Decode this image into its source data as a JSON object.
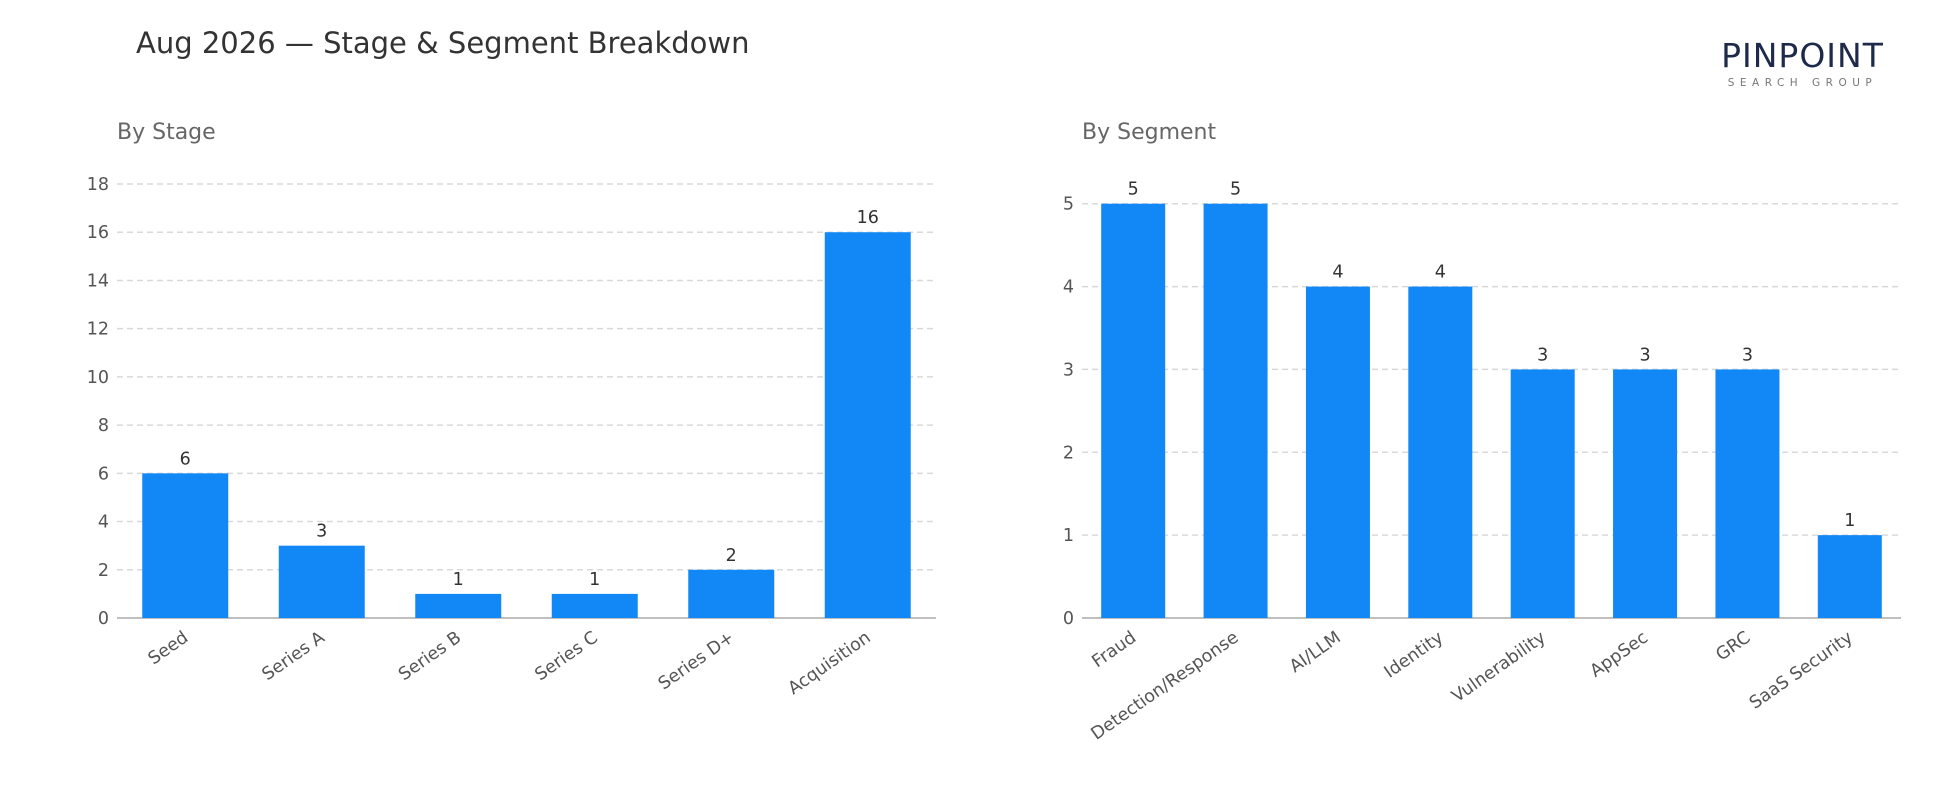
{
  "title": "Aug 2026 — Stage & Segment Breakdown",
  "logo": {
    "word": "PINPOINT",
    "sub": "SEARCH GROUP"
  },
  "colors": {
    "bar": "#1288f6",
    "grid": "#d9d9d9",
    "axis": "#aaaaaa"
  },
  "chart_data": [
    {
      "type": "bar",
      "title": "By Stage",
      "categories": [
        "Seed",
        "Series A",
        "Series B",
        "Series C",
        "Series D+",
        "Acquisition"
      ],
      "values": [
        6,
        3,
        1,
        1,
        2,
        16
      ],
      "ylim": [
        0,
        18
      ],
      "yticks": [
        0,
        2,
        4,
        6,
        8,
        10,
        12,
        14,
        16,
        18
      ],
      "grid": true
    },
    {
      "type": "bar",
      "title": "By Segment",
      "categories": [
        "Fraud",
        "Detection/Response",
        "AI/LLM",
        "Identity",
        "Vulnerability",
        "AppSec",
        "GRC",
        "SaaS Security"
      ],
      "values": [
        5,
        5,
        4,
        4,
        3,
        3,
        3,
        1
      ],
      "ylim": [
        0,
        5.6
      ],
      "yticks": [
        0,
        1,
        2,
        3,
        4,
        5
      ],
      "grid": true
    }
  ]
}
